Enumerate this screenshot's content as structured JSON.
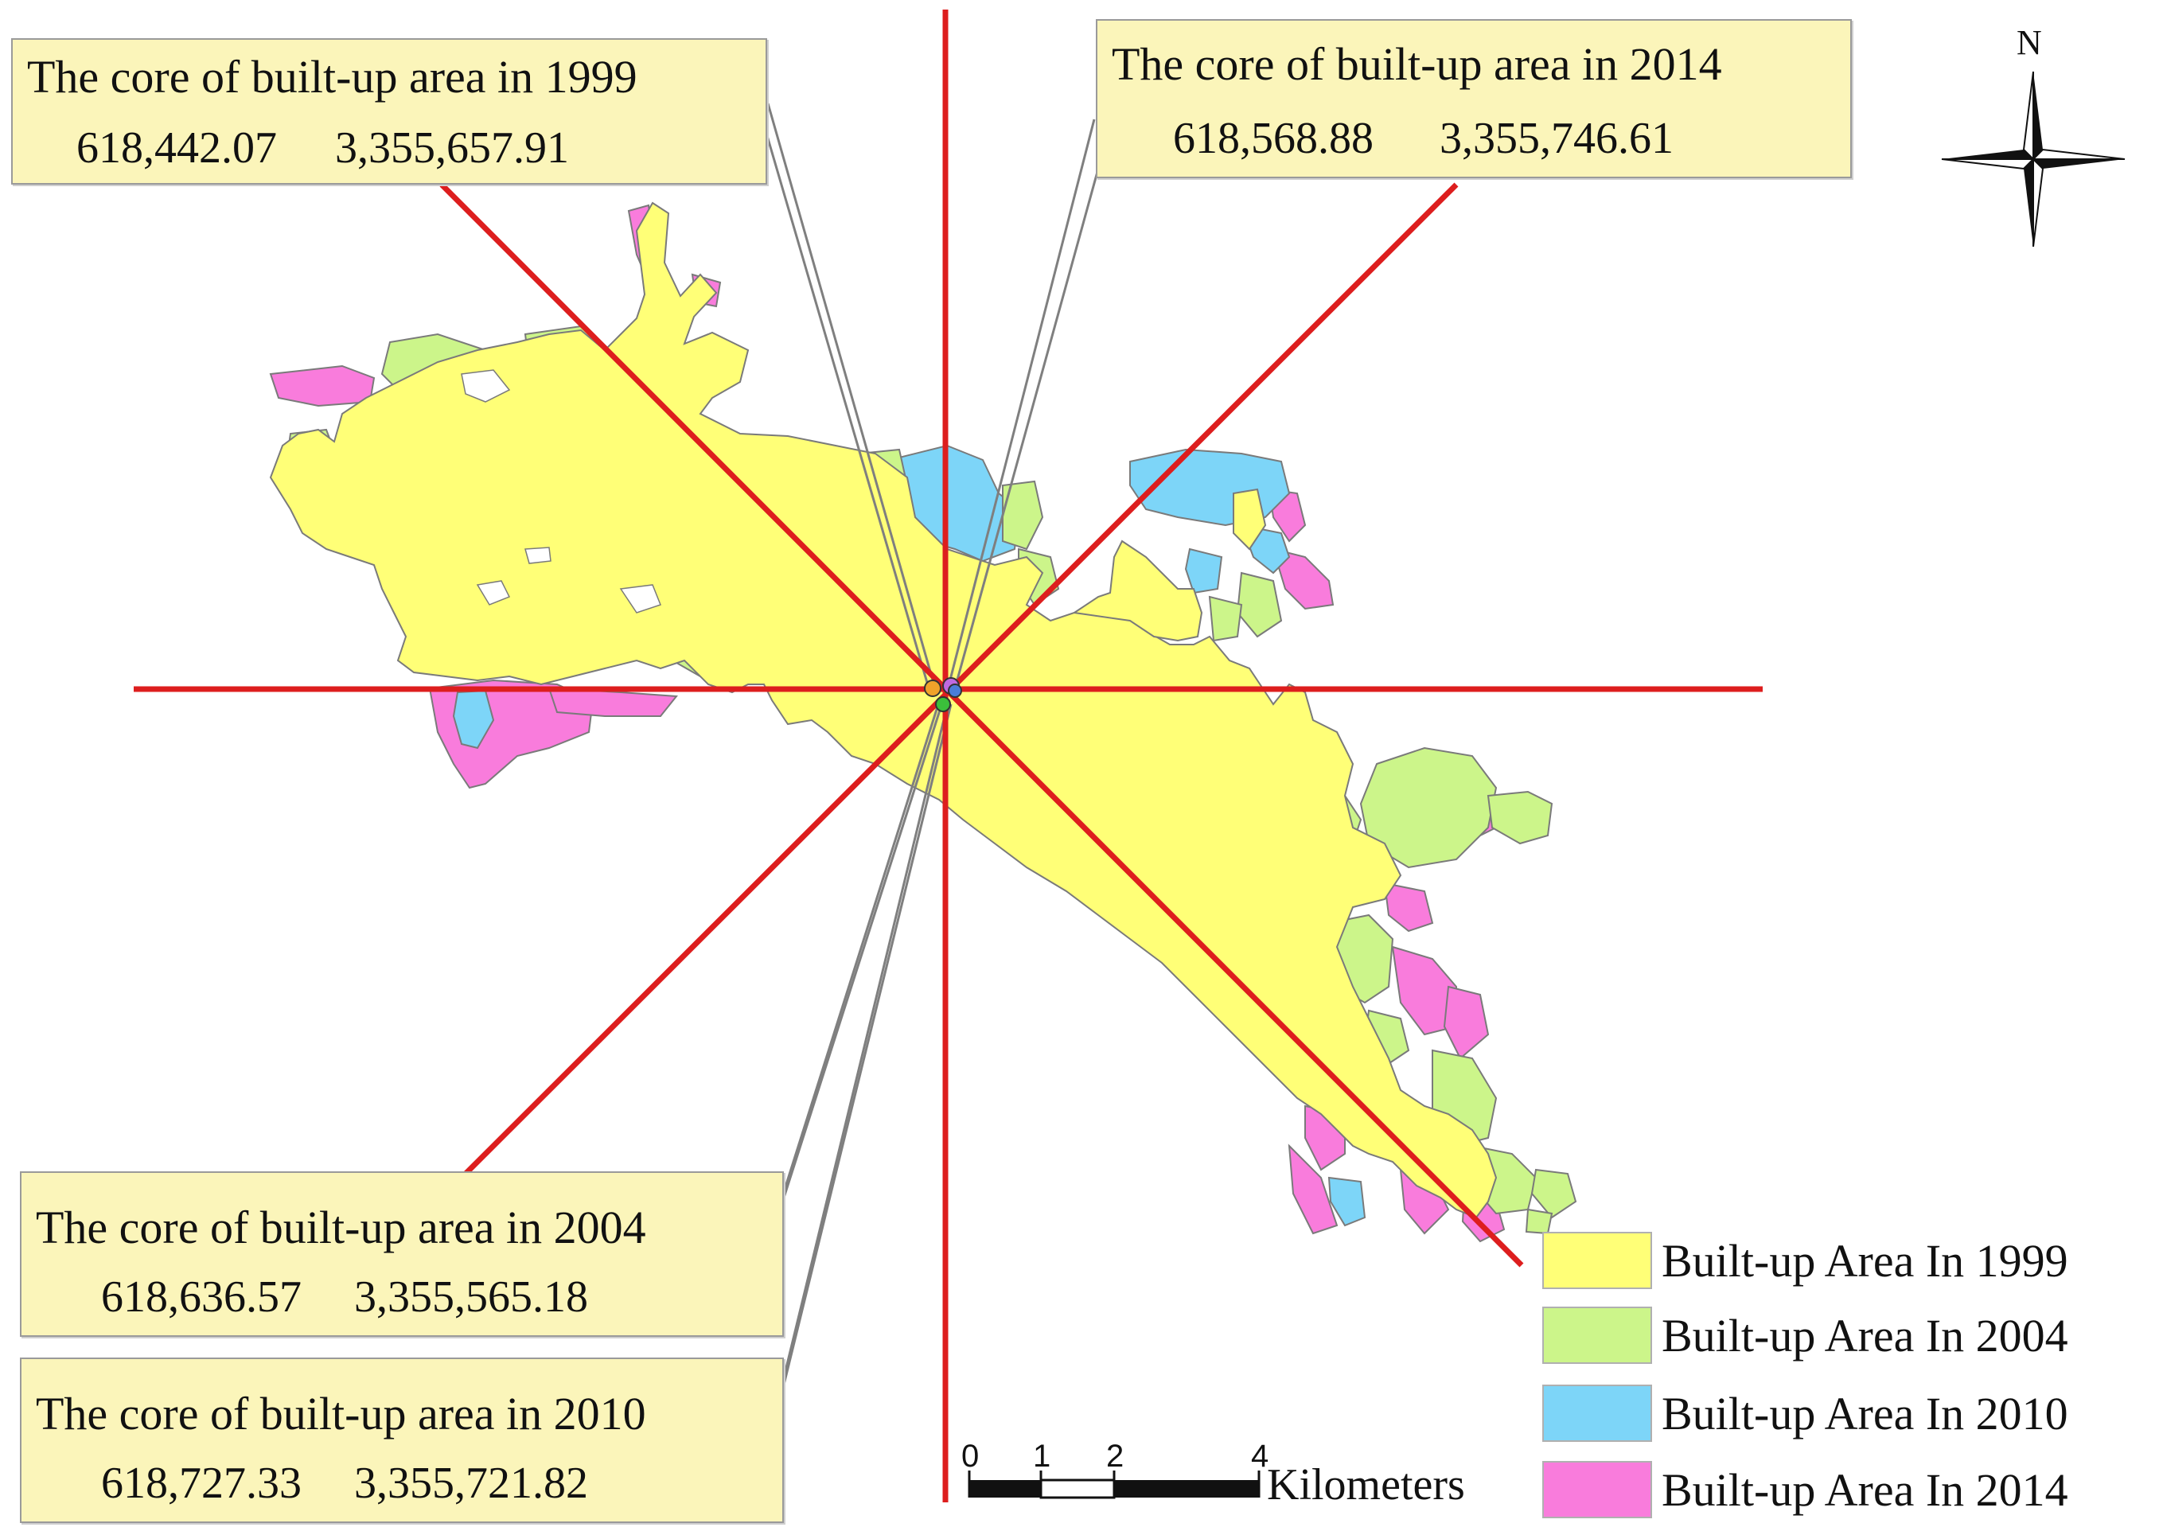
{
  "callouts": [
    {
      "id": "1999",
      "title": "The core of built-up area in 1999",
      "x_coord": "618,442.07",
      "y_coord": "3,355,657.91"
    },
    {
      "id": "2014",
      "title": "The core of built-up area in 2014",
      "x_coord": "618,568.88",
      "y_coord": "3,355,746.61"
    },
    {
      "id": "2004",
      "title": "The core of built-up area in 2004",
      "x_coord": "618,636.57",
      "y_coord": "3,355,565.18"
    },
    {
      "id": "2010",
      "title": "The core of built-up area in 2010",
      "x_coord": "618,727.33",
      "y_coord": "3,355,721.82"
    }
  ],
  "legend": [
    {
      "label": "Built-up Area In 1999",
      "color": "#ffff77"
    },
    {
      "label": "Built-up Area In 2004",
      "color": "#ccf58a"
    },
    {
      "label": "Built-up Area In 2010",
      "color": "#7dd5f8"
    },
    {
      "label": "Built-up Area In 2014",
      "color": "#f97cdc"
    }
  ],
  "scale_bar": {
    "ticks": [
      "0",
      "1",
      "2",
      "4"
    ],
    "unit": "Kilometers"
  },
  "north_arrow": {
    "label": "N"
  },
  "colors": {
    "axis_lines": "#dd1e1e",
    "outline": "#7a7a7a",
    "leader_lines": "#7f7f7f"
  }
}
